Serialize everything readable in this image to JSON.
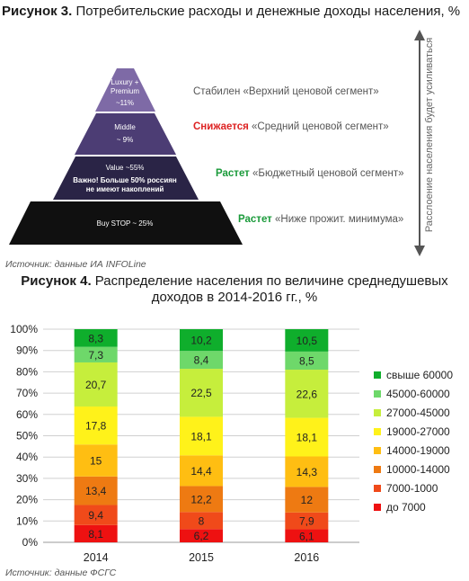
{
  "figure3": {
    "title_bold": "Рисунок 3.",
    "title_rest": " Потребительские расходы и денежные доходы населения, %",
    "source": "Источник: данные ИА INFOLine",
    "side_note": "Расслоение населения будет усиливаться",
    "colors": {
      "tier1": "#7e6aa6",
      "tier2": "#4c3d74",
      "tier3": "#2a2446",
      "tier4": "#101010",
      "arrow": "#555555"
    },
    "pyramid": [
      {
        "label_lines": [
          "Luxury +",
          "Premium",
          "~11%"
        ],
        "status_verb": "Стабилен",
        "status_text": " «Верхний ценовой сегмент»",
        "verb_color": "gray"
      },
      {
        "label_lines": [
          "Middle",
          "~ 9%"
        ],
        "status_verb": "Снижается",
        "status_text": " «Средний ценовой сегмент»",
        "verb_color": "red"
      },
      {
        "label_lines": [
          "Value ~55%",
          "Важно! Больше 50% россиян",
          "не имеют накоплений"
        ],
        "status_verb": "Растет",
        "status_text": " «Бюджетный ценовой сегмент»",
        "verb_color": "green"
      },
      {
        "label_lines": [
          "Buy STOP ~ 25%"
        ],
        "status_verb": "Растет",
        "status_text": " «Ниже прожит. минимума»",
        "verb_color": "green"
      }
    ]
  },
  "figure4": {
    "title_bold": "Рисунок 4.",
    "title_rest_line1": " Распределение населения по величине среднедушевых",
    "title_line2": "доходов в 2014-2016  гг., %",
    "source": "Источник: данные ФСГС"
  },
  "chart_data": {
    "type": "bar",
    "stacked": true,
    "categories": [
      "2014",
      "2015",
      "2016"
    ],
    "ylim": [
      0,
      100
    ],
    "yticks": [
      "0%",
      "10%",
      "20%",
      "30%",
      "40%",
      "50%",
      "60%",
      "70%",
      "80%",
      "90%",
      "100%"
    ],
    "grid": true,
    "legend_position": "right",
    "series": [
      {
        "name": "до 7000",
        "color": "#ee1111",
        "values": [
          8.1,
          6.2,
          6.1
        ],
        "labels": [
          "8,1",
          "6,2",
          "6,1"
        ]
      },
      {
        "name": "7000-1000",
        "color": "#f04a1a",
        "values": [
          9.4,
          8.0,
          7.9
        ],
        "labels": [
          "9,4",
          "8",
          "7,9"
        ]
      },
      {
        "name": "10000-14000",
        "color": "#ee7a12",
        "values": [
          13.4,
          12.2,
          12.0
        ],
        "labels": [
          "13,4",
          "12,2",
          "12"
        ]
      },
      {
        "name": "14000-19000",
        "color": "#ffbe12",
        "values": [
          15.0,
          14.4,
          14.3
        ],
        "labels": [
          "15",
          "14,4",
          "14,3"
        ]
      },
      {
        "name": "19000-27000",
        "color": "#fff21a",
        "values": [
          17.8,
          18.1,
          18.1
        ],
        "labels": [
          "17,8",
          "18,1",
          "18,1"
        ]
      },
      {
        "name": "27000-45000",
        "color": "#c6ee3c",
        "values": [
          20.7,
          22.5,
          22.6
        ],
        "labels": [
          "20,7",
          "22,5",
          "22,6"
        ]
      },
      {
        "name": "45000-60000",
        "color": "#6ed86a",
        "values": [
          7.3,
          8.4,
          8.5
        ],
        "labels": [
          "7,3",
          "8,4",
          "8,5"
        ]
      },
      {
        "name": "свыше 60000",
        "color": "#0fae2c",
        "values": [
          8.3,
          10.2,
          10.5
        ],
        "labels": [
          "8,3",
          "10,2",
          "10,5"
        ]
      }
    ]
  }
}
